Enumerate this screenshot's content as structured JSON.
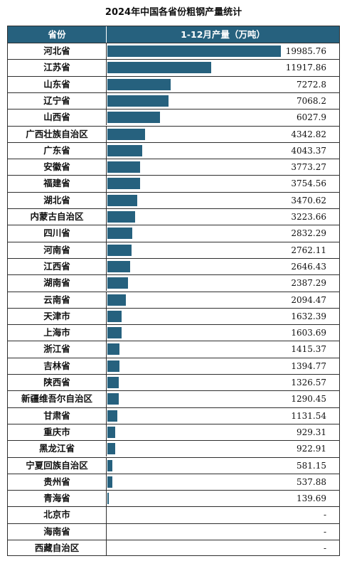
{
  "title": "2024年中国各省份粗钢产量统计",
  "header": {
    "col1": "省份",
    "col2": "1-12月产量（万吨）"
  },
  "colors": {
    "bar": "#26617e",
    "header_bg": "#26617e"
  },
  "chart_data": {
    "type": "bar",
    "orientation": "horizontal",
    "title": "2024年中国各省份粗钢产量统计",
    "categories": [
      "河北省",
      "江苏省",
      "山东省",
      "辽宁省",
      "山西省",
      "广西壮族自治区",
      "广东省",
      "安徽省",
      "福建省",
      "湖北省",
      "内蒙古自治区",
      "四川省",
      "河南省",
      "江西省",
      "湖南省",
      "云南省",
      "天津市",
      "上海市",
      "浙江省",
      "吉林省",
      "陕西省",
      "新疆维吾尔自治区",
      "甘肃省",
      "重庆市",
      "黑龙江省",
      "宁夏回族自治区",
      "贵州省",
      "青海省",
      "北京市",
      "海南省",
      "西藏自治区"
    ],
    "values": [
      19985.76,
      11917.86,
      7272.8,
      7068.2,
      6027.9,
      4342.82,
      4043.37,
      3773.27,
      3754.56,
      3470.62,
      3223.66,
      2832.29,
      2762.11,
      2646.43,
      2387.29,
      2094.47,
      1632.39,
      1603.69,
      1415.37,
      1394.77,
      1326.57,
      1290.45,
      1131.54,
      929.31,
      922.91,
      581.15,
      537.88,
      139.69,
      null,
      null,
      null
    ],
    "labels": [
      "19985.76",
      "11917.86",
      "7272.8",
      "7068.2",
      "6027.9",
      "4342.82",
      "4043.37",
      "3773.27",
      "3754.56",
      "3470.62",
      "3223.66",
      "2832.29",
      "2762.11",
      "2646.43",
      "2387.29",
      "2094.47",
      "1632.39",
      "1603.69",
      "1415.37",
      "1394.77",
      "1326.57",
      "1290.45",
      "1131.54",
      "929.31",
      "922.91",
      "581.15",
      "537.88",
      "139.69",
      "-",
      "-",
      "-"
    ],
    "xlim": [
      0,
      19985.76
    ]
  }
}
